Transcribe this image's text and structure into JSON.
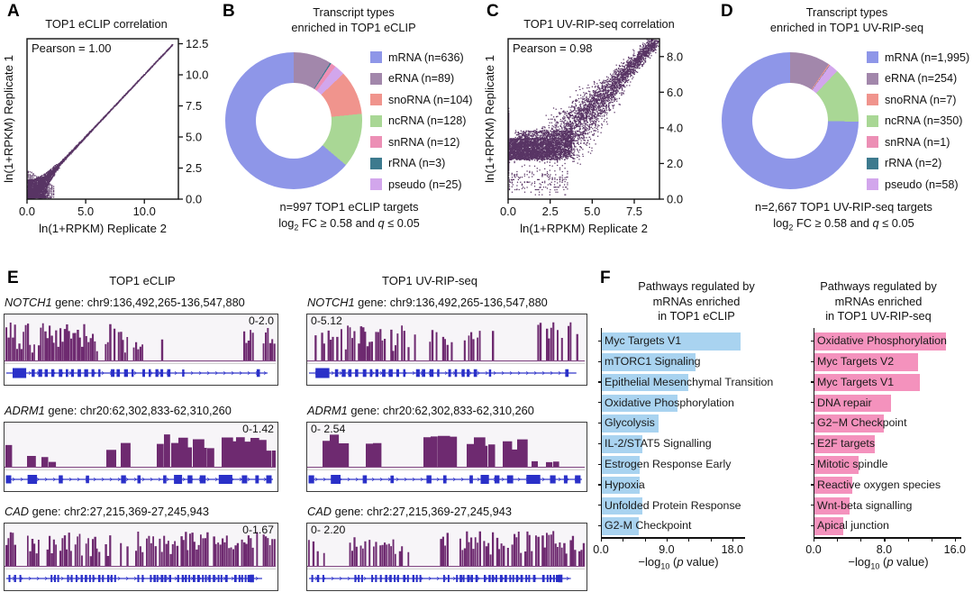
{
  "panel_letters": {
    "a": "A",
    "b": "B",
    "c": "C",
    "d": "D",
    "e": "E",
    "f": "F"
  },
  "chart_data": [
    {
      "id": "panelA_scatter",
      "type": "scatter",
      "title": "TOP1 eCLIP correlation",
      "annotation": "Pearson = 1.00",
      "xlabel": "ln(1+RPKM) Replicate 2",
      "ylabel": "ln(1+RPKM) Replicate 1",
      "xlim": [
        0,
        12.9
      ],
      "ylim": [
        0,
        12.9
      ],
      "xtick_vals": [
        0,
        5,
        10
      ],
      "xtick_labels": [
        "0.0",
        "5.0",
        "10.0"
      ],
      "ytick_vals": [
        0,
        2.5,
        5,
        7.5,
        10,
        12.5
      ],
      "ytick_labels": [
        "0.0",
        "2.5",
        "5.0",
        "7.5",
        "10.0",
        "12.5"
      ],
      "point_color": "#3b1049",
      "points_summary": "~6,000 dense points forming a tight wedge along y=x from (0,0) to (11.5,11.5); vertical/horizontal striping artifacts below ln(1+RPKM)=2.3; Pearson r = 1.00"
    },
    {
      "id": "panelB_donut",
      "type": "pie",
      "title_lines": [
        "Transcript types",
        "enriched in TOP1 eCLIP"
      ],
      "slices": [
        {
          "label": "mRNA (n=636)",
          "value": 636,
          "color": "#8e96e8"
        },
        {
          "label": "eRNA (n=89)",
          "value": 89,
          "color": "#a287ab"
        },
        {
          "label": "snoRNA (n=104)",
          "value": 104,
          "color": "#f0948d"
        },
        {
          "label": "ncRNA (n=128)",
          "value": 128,
          "color": "#a9d795"
        },
        {
          "label": "snRNA (n=12)",
          "value": 12,
          "color": "#ec8fb5"
        },
        {
          "label": "rRNA (n=3)",
          "value": 3,
          "color": "#3d7a8e"
        },
        {
          "label": "pseudo (n=25)",
          "value": 25,
          "color": "#d2a6ec"
        }
      ],
      "draw_order": [
        1,
        5,
        4,
        6,
        2,
        3,
        0
      ],
      "caption_line1": "n=997 TOP1 eCLIP targets",
      "caption_line2_parts": [
        "log",
        "2",
        " FC ≥ 0.58 and ",
        "q",
        " ≤ 0.05"
      ]
    },
    {
      "id": "panelC_scatter",
      "type": "scatter",
      "title": "TOP1 UV-RIP-seq correlation",
      "annotation": "Pearson = 0.98",
      "xlabel": "ln(1+RPKM) Replicate 2",
      "ylabel": "ln(1+RPKM) Replicate 1",
      "xlim": [
        0,
        9.0
      ],
      "ylim": [
        0,
        9.0
      ],
      "xtick_vals": [
        0,
        2.5,
        5,
        7.5
      ],
      "xtick_labels": [
        "0.0",
        "2.5",
        "5.0",
        "7.5"
      ],
      "ytick_vals": [
        0,
        2,
        4,
        6,
        8
      ],
      "ytick_labels": [
        "0.0",
        "2.0",
        "4.0",
        "6.0",
        "8.0"
      ],
      "point_color": "#3b1049",
      "points_summary": "~7,000 points in a broad cloud along y=x from (1,2.5) to (8.9,8.7); dense shelf near y=2.5-4 at low x; discrete vertical/horizontal striping in lower-left; Pearson r = 0.98"
    },
    {
      "id": "panelD_donut",
      "type": "pie",
      "title_lines": [
        "Transcript types",
        "enriched in TOP1 UV-RIP-seq"
      ],
      "slices": [
        {
          "label": "mRNA (n=1,995)",
          "value": 1995,
          "color": "#8e96e8"
        },
        {
          "label": "eRNA (n=254)",
          "value": 254,
          "color": "#a287ab"
        },
        {
          "label": "snoRNA (n=7)",
          "value": 7,
          "color": "#f0948d"
        },
        {
          "label": "ncRNA (n=350)",
          "value": 350,
          "color": "#a9d795"
        },
        {
          "label": "snRNA (n=1)",
          "value": 1,
          "color": "#ec8fb5"
        },
        {
          "label": "rRNA (n=2)",
          "value": 2,
          "color": "#3d7a8e"
        },
        {
          "label": "pseudo (n=58)",
          "value": 58,
          "color": "#d2a6ec"
        }
      ],
      "draw_order": [
        1,
        2,
        4,
        5,
        6,
        3,
        0
      ],
      "caption_line1": "n=2,667 TOP1 UV-RIP-seq targets",
      "caption_line2_parts": [
        "log",
        "2",
        " FC ≥ 0.58 and ",
        "q",
        " ≤ 0.05"
      ]
    },
    {
      "id": "panelF_left",
      "type": "bar",
      "title_lines": [
        "Pathways regulated by",
        "mRNAs enriched",
        "in TOP1 eCLIP"
      ],
      "bar_color": "#a9d3f0",
      "categories": [
        "Myc Targets V1",
        "mTORC1 Signaling",
        "Epithelial Mesenchymal Transition",
        "Oxidative Phosphorylation",
        "Glycolysis",
        "IL-2/STAT5 Signalling",
        "Estrogen Response Early",
        "Hypoxia",
        "Unfolded Protein Response",
        "G2-M Checkpoint"
      ],
      "values": [
        19.0,
        12.8,
        11.9,
        10.4,
        7.8,
        5.5,
        5.2,
        5.2,
        5.5,
        5.1
      ],
      "xlim": [
        0,
        19.4
      ],
      "xtick_vals": [
        0,
        3,
        6,
        9,
        12,
        15,
        18
      ],
      "xtick_labels": [
        "0.0",
        "",
        "",
        "9.0",
        "",
        "",
        "18.0"
      ],
      "xlabel_parts": [
        "−log",
        "10",
        " (",
        "p",
        " value)"
      ]
    },
    {
      "id": "panelF_right",
      "type": "bar",
      "title_lines": [
        "Pathways regulated by",
        "mRNAs enriched",
        "in TOP1 UV-RIP-seq"
      ],
      "bar_color": "#f492bd",
      "categories": [
        "Oxidative Phosphorylation",
        "Myc Targets V2",
        "Myc Targets V1",
        "DNA repair",
        "G2−M Checkpoint",
        "E2F targets",
        "Mitotic spindle",
        "Reactive oxygen species",
        "Wnt-beta signalling",
        "Apical junction"
      ],
      "values": [
        14.9,
        11.7,
        11.9,
        8.7,
        7.9,
        6.8,
        5.0,
        4.3,
        4.0,
        3.3
      ],
      "xlim": [
        0,
        16.7
      ],
      "xtick_vals": [
        0,
        2.667,
        5.333,
        8,
        10.667,
        13.333,
        16
      ],
      "xtick_labels": [
        "0.0",
        "",
        "",
        "8.0",
        "",
        "",
        "16.0"
      ],
      "xlabel_parts": [
        "−log",
        "10",
        " (",
        "p",
        " value)"
      ]
    }
  ],
  "tracks": {
    "left_header": "TOP1 eCLIP",
    "right_header": "TOP1 UV-RIP-seq",
    "peak_color": "#6e2a70",
    "gene_color": "#2a30c8",
    "rows": [
      {
        "gene": "NOTCH1",
        "locus": " gene: chr9:136,492,265-136,547,880",
        "left_scale": "0-2.0",
        "right_scale": "0-5.12"
      },
      {
        "gene": "ADRM1",
        "locus": " gene: chr20:62,302,833-62,310,260",
        "left_scale": "0-1.42",
        "right_scale": "0- 2.54"
      },
      {
        "gene": "CAD",
        "locus": " gene: chr2:27,215,369-27,245,943",
        "left_scale": "0-1.67",
        "right_scale": "0- 2.20"
      }
    ]
  }
}
